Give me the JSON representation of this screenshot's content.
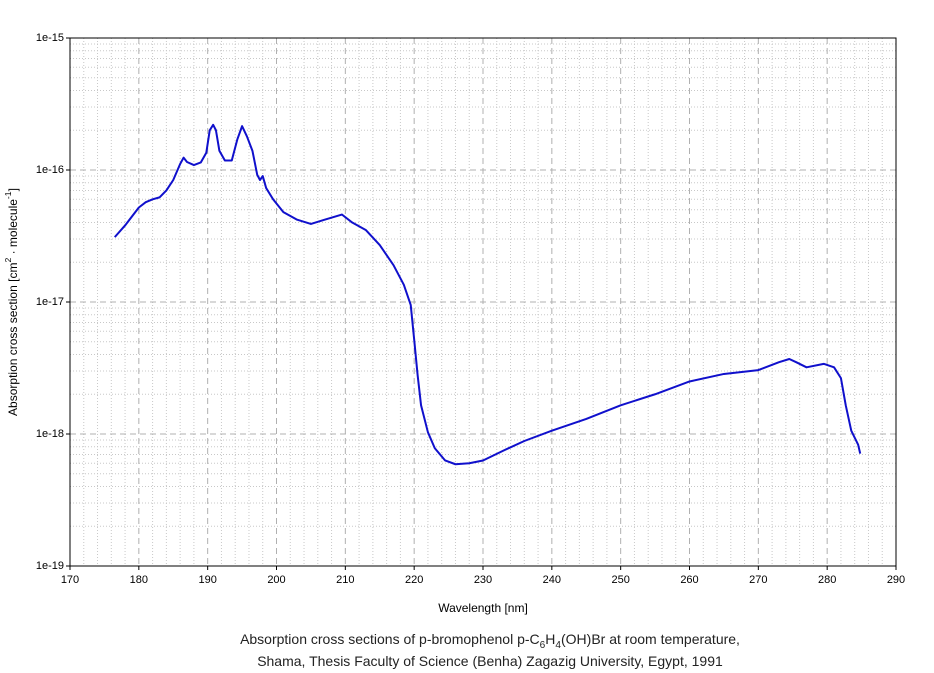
{
  "chart_data": {
    "type": "line",
    "x_label": "Wavelength [nm]",
    "y_label": [
      {
        "text": "Absorption cross section [cm"
      },
      {
        "text": "2",
        "script": "super"
      },
      {
        "text": " · molecule"
      },
      {
        "text": "-1",
        "script": "super"
      },
      {
        "text": "]"
      }
    ],
    "caption": [
      [
        {
          "text": "Absorption cross sections of p-bromophenol p-C"
        },
        {
          "text": "6",
          "script": "sub"
        },
        {
          "text": "H"
        },
        {
          "text": "4",
          "script": "sub"
        },
        {
          "text": "(OH)Br at room temperature,"
        }
      ],
      [
        {
          "text": "Shama, Thesis Faculty of Science (Benha) Zagazig University, Egypt, 1991"
        }
      ]
    ],
    "log_y": true,
    "grid": true,
    "minor_grid": true,
    "xlim": [
      170,
      290
    ],
    "xticks": [
      170,
      180,
      190,
      200,
      210,
      220,
      230,
      240,
      250,
      260,
      270,
      280,
      290
    ],
    "ylim": [
      1e-19,
      1e-15
    ],
    "yticks": [
      {
        "value": 1e-19,
        "label": "1e-19"
      },
      {
        "value": 1e-18,
        "label": "1e-18"
      },
      {
        "value": 1e-17,
        "label": "1e-17"
      },
      {
        "value": 1e-16,
        "label": "1e-16"
      },
      {
        "value": 1e-15,
        "label": "1e-15"
      }
    ],
    "series": [
      {
        "color": "#1010cc",
        "x": [
          176.5,
          178,
          180,
          181,
          182,
          183,
          184,
          185,
          186,
          186.5,
          187,
          188,
          189,
          189.8,
          190.3,
          190.8,
          191.2,
          191.7,
          192.5,
          193.5,
          194.3,
          195,
          195.7,
          196.5,
          197.2,
          197.6,
          198,
          198.5,
          199.5,
          201,
          203,
          205,
          207,
          209.5,
          211,
          213,
          215,
          217,
          218.5,
          219.5,
          220,
          220.5,
          221,
          222,
          223,
          224.5,
          226,
          228,
          230,
          233,
          236,
          240,
          245,
          250,
          255,
          260,
          265,
          270,
          273,
          274.5,
          275.5,
          277,
          279.5,
          281,
          282,
          282.7,
          283.5,
          284.5,
          284.8
        ],
        "values": [
          3.1e-17,
          3.8e-17,
          5.2e-17,
          5.7e-17,
          6e-17,
          6.2e-17,
          7e-17,
          8.4e-17,
          1.11e-16,
          1.24e-16,
          1.15e-16,
          1.09e-16,
          1.14e-16,
          1.35e-16,
          2e-16,
          2.2e-16,
          2e-16,
          1.4e-16,
          1.18e-16,
          1.18e-16,
          1.7e-16,
          2.15e-16,
          1.8e-16,
          1.4e-16,
          9.2e-17,
          8.4e-17,
          9e-17,
          7.3e-17,
          6e-17,
          4.8e-17,
          4.2e-17,
          3.9e-17,
          4.2e-17,
          4.6e-17,
          4e-17,
          3.5e-17,
          2.7e-17,
          1.9e-17,
          1.35e-17,
          9.5e-18,
          5.2e-18,
          2.8e-18,
          1.65e-18,
          1.03e-18,
          7.8e-19,
          6.3e-19,
          5.9e-19,
          6e-19,
          6.3e-19,
          7.5e-19,
          8.85e-19,
          1.06e-18,
          1.3e-18,
          1.65e-18,
          2e-18,
          2.5e-18,
          2.85e-18,
          3.05e-18,
          3.5e-18,
          3.7e-18,
          3.5e-18,
          3.2e-18,
          3.4e-18,
          3.2e-18,
          2.65e-18,
          1.65e-18,
          1.06e-18,
          8.3e-19,
          7.1e-19
        ]
      }
    ]
  }
}
